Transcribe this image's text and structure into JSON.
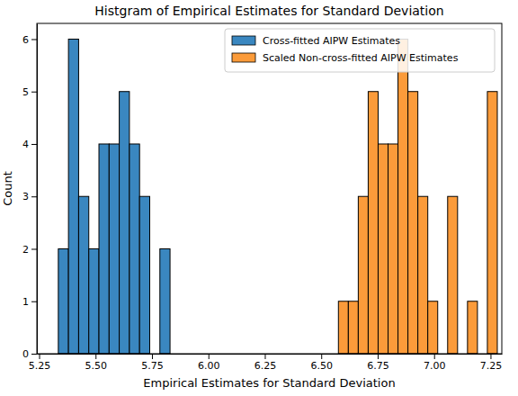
{
  "chart_data": {
    "type": "histogram",
    "title": "Histgram of Empirical Estimates for Standard Deviation",
    "x_label": "Empirical Estimates for Standard Deviation",
    "y_label": "Count",
    "legend": "upper right",
    "series": [
      {
        "name": "Cross-fitted AIPW Estimates",
        "color": "#3a87c0",
        "bins": [
          5.335,
          5.38,
          5.425,
          5.47,
          5.515,
          5.56,
          5.605,
          5.65,
          5.695,
          5.74,
          5.785,
          5.83
        ],
        "values": [
          2,
          6,
          3,
          2,
          4,
          4,
          5,
          4,
          3,
          0,
          2
        ]
      },
      {
        "name": "Scaled Non-cross-fitted AIPW Estimates",
        "color": "#fb9b3a",
        "bins": [
          6.576,
          6.62,
          6.664,
          6.708,
          6.752,
          6.796,
          6.84,
          6.884,
          6.928,
          6.972,
          7.016,
          7.06,
          7.104,
          7.148,
          7.192,
          7.236,
          7.28
        ],
        "values": [
          1,
          1,
          3,
          5,
          4,
          4,
          6,
          5,
          3,
          1,
          0,
          3,
          0,
          1,
          0,
          5
        ]
      }
    ],
    "xlim": [
      5.24,
      7.3
    ],
    "xticks": [
      5.25,
      {
        "value": 5.5,
        "label": "5.50"
      },
      5.75,
      {
        "value": 6,
        "label": "6.00"
      },
      6.25,
      {
        "value": 6.5,
        "label": "6.50"
      },
      6.75,
      {
        "value": 7,
        "label": "7.00"
      },
      7.25
    ],
    "ylim": [
      0,
      6.3
    ],
    "yticks": [
      0,
      1,
      2,
      3,
      4,
      5,
      6
    ]
  }
}
